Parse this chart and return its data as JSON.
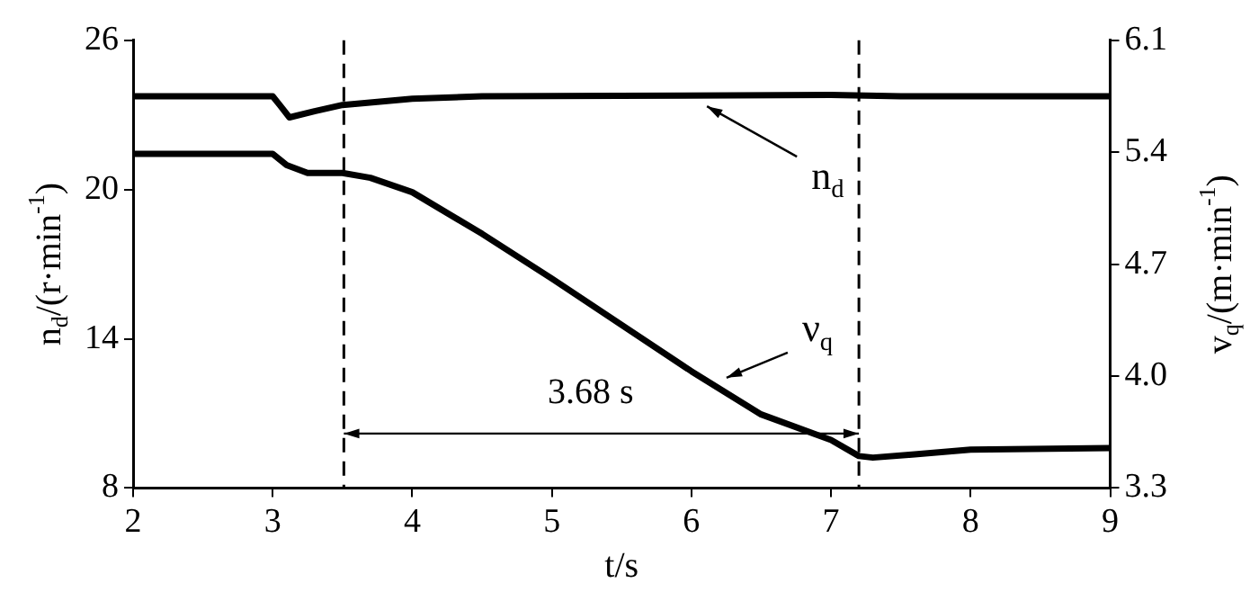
{
  "chart_data": {
    "type": "line",
    "xlabel": "t/s",
    "ylabel": "n$_{d}$/(r·min$^{-1}$)",
    "y2label": "v$_{q}$/(m·min$^{-1}$)",
    "xlim": [
      2,
      9
    ],
    "xticks": [
      2,
      3,
      4,
      5,
      6,
      7,
      8,
      9
    ],
    "ylim": [
      8,
      26
    ],
    "yticks": [
      8,
      14,
      20,
      26
    ],
    "y2lim": [
      3.3,
      6.1
    ],
    "y2ticks": [
      {
        "value": 3.3,
        "label": "3.3"
      },
      {
        "value": 4.0,
        "label": "4.0"
      },
      {
        "value": 4.7,
        "label": "4.7"
      },
      {
        "value": 5.4,
        "label": "5.4"
      },
      {
        "value": 6.1,
        "label": "6.1"
      }
    ],
    "grid": false,
    "legend": false,
    "marker": "none",
    "line_style": "solid",
    "series": [
      {
        "name": "n$_{d}$",
        "color": "#000000",
        "x": [
          2,
          3.0,
          3.05,
          3.12,
          3.3,
          3.5,
          4,
          4.5,
          7,
          7.5,
          9
        ],
        "values": [
          23.75,
          23.75,
          23.4,
          22.9,
          23.15,
          23.4,
          23.65,
          23.75,
          23.8,
          23.75,
          23.75
        ]
      },
      {
        "name": "ν$_{q}$",
        "color": "#000000",
        "axis": "y2",
        "x": [
          2,
          3.0,
          3.1,
          3.25,
          3.5,
          3.7,
          4,
          4.5,
          5,
          6,
          6.5,
          7,
          7.2,
          7.3,
          7.6,
          8,
          9
        ],
        "values": [
          5.39,
          5.39,
          5.32,
          5.27,
          5.27,
          5.24,
          5.15,
          4.89,
          4.61,
          4.03,
          3.76,
          3.6,
          3.5,
          3.49,
          3.51,
          3.54,
          3.55
        ]
      }
    ],
    "ref_lines": [
      {
        "axis": "x",
        "value": 3.51,
        "line_style": "dashed",
        "color": "#000000"
      },
      {
        "axis": "x",
        "value": 7.2,
        "line_style": "dashed",
        "color": "#000000"
      }
    ],
    "annotations": [
      "3.68 s"
    ]
  }
}
